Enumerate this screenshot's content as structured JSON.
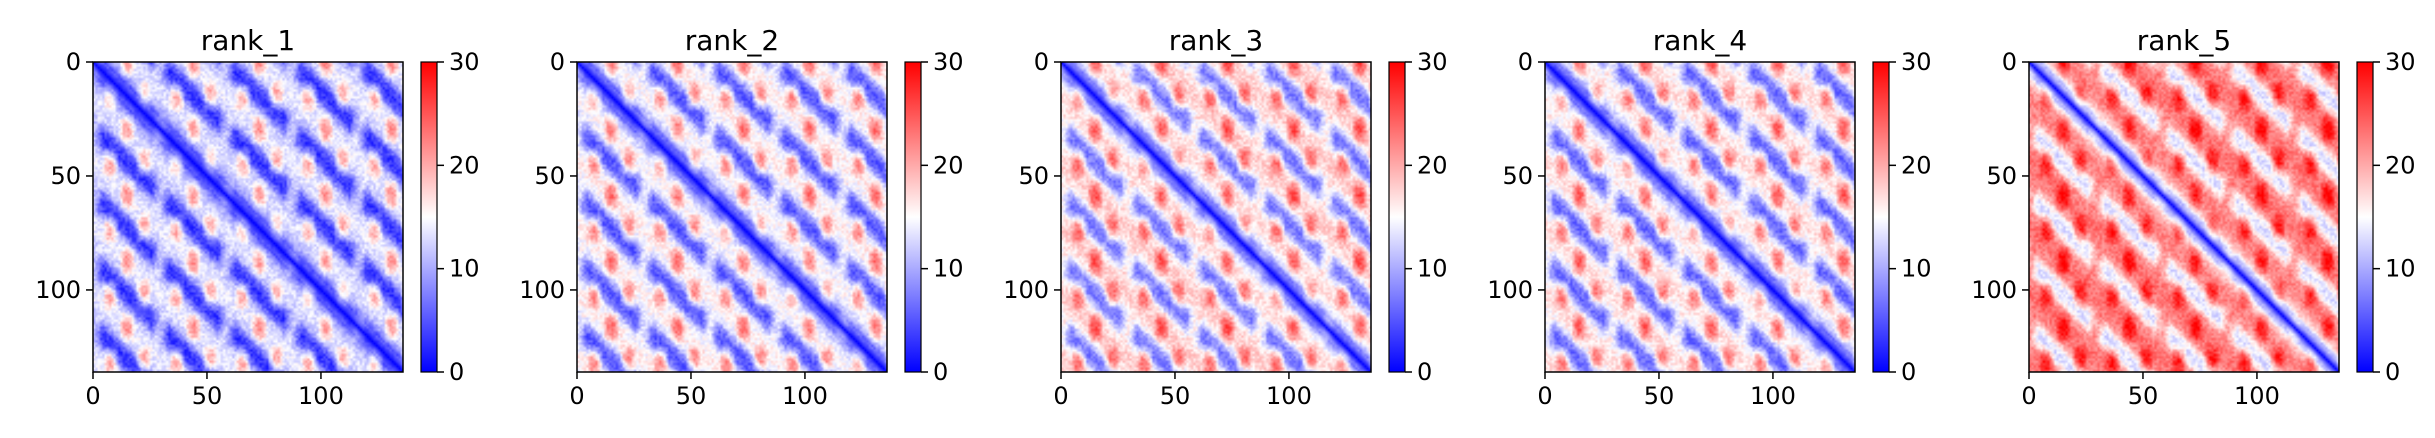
{
  "chart_data": [
    {
      "type": "heatmap",
      "title": "rank_1",
      "n": 136,
      "xticks": [
        0,
        50,
        100
      ],
      "yticks": [
        0,
        50,
        100
      ],
      "xlim": [
        0,
        136
      ],
      "ylim": [
        136,
        0
      ],
      "colorbar": {
        "ticks": [
          0,
          10,
          20,
          30
        ],
        "range": [
          0,
          30
        ],
        "colormap": "bwr"
      },
      "background_level": 9,
      "diagonal_value": 0,
      "hotspot_level": 18,
      "hotspot_period": 29
    },
    {
      "type": "heatmap",
      "title": "rank_2",
      "n": 136,
      "xticks": [
        0,
        50,
        100
      ],
      "yticks": [
        0,
        50,
        100
      ],
      "xlim": [
        0,
        136
      ],
      "ylim": [
        136,
        0
      ],
      "colorbar": {
        "ticks": [
          0,
          10,
          20,
          30
        ],
        "range": [
          0,
          30
        ],
        "colormap": "bwr"
      },
      "background_level": 11,
      "diagonal_value": 0,
      "hotspot_level": 20,
      "hotspot_period": 29
    },
    {
      "type": "heatmap",
      "title": "rank_3",
      "n": 136,
      "xticks": [
        0,
        50,
        100
      ],
      "yticks": [
        0,
        50,
        100
      ],
      "xlim": [
        0,
        136
      ],
      "ylim": [
        136,
        0
      ],
      "colorbar": {
        "ticks": [
          0,
          10,
          20,
          30
        ],
        "range": [
          0,
          30
        ],
        "colormap": "bwr"
      },
      "background_level": 13,
      "diagonal_value": 0,
      "hotspot_level": 22,
      "hotspot_period": 29
    },
    {
      "type": "heatmap",
      "title": "rank_4",
      "n": 136,
      "xticks": [
        0,
        50,
        100
      ],
      "yticks": [
        0,
        50,
        100
      ],
      "xlim": [
        0,
        136
      ],
      "ylim": [
        136,
        0
      ],
      "colorbar": {
        "ticks": [
          0,
          10,
          20,
          30
        ],
        "range": [
          0,
          30
        ],
        "colormap": "bwr"
      },
      "background_level": 12,
      "diagonal_value": 0,
      "hotspot_level": 21,
      "hotspot_period": 29
    },
    {
      "type": "heatmap",
      "title": "rank_5",
      "n": 136,
      "xticks": [
        0,
        50,
        100
      ],
      "yticks": [
        0,
        50,
        100
      ],
      "xlim": [
        0,
        136
      ],
      "ylim": [
        136,
        0
      ],
      "colorbar": {
        "ticks": [
          0,
          10,
          20,
          30
        ],
        "range": [
          0,
          30
        ],
        "colormap": "bwr"
      },
      "background_level": 19,
      "diagonal_value": 0,
      "hotspot_level": 27,
      "hotspot_period": 29
    }
  ]
}
